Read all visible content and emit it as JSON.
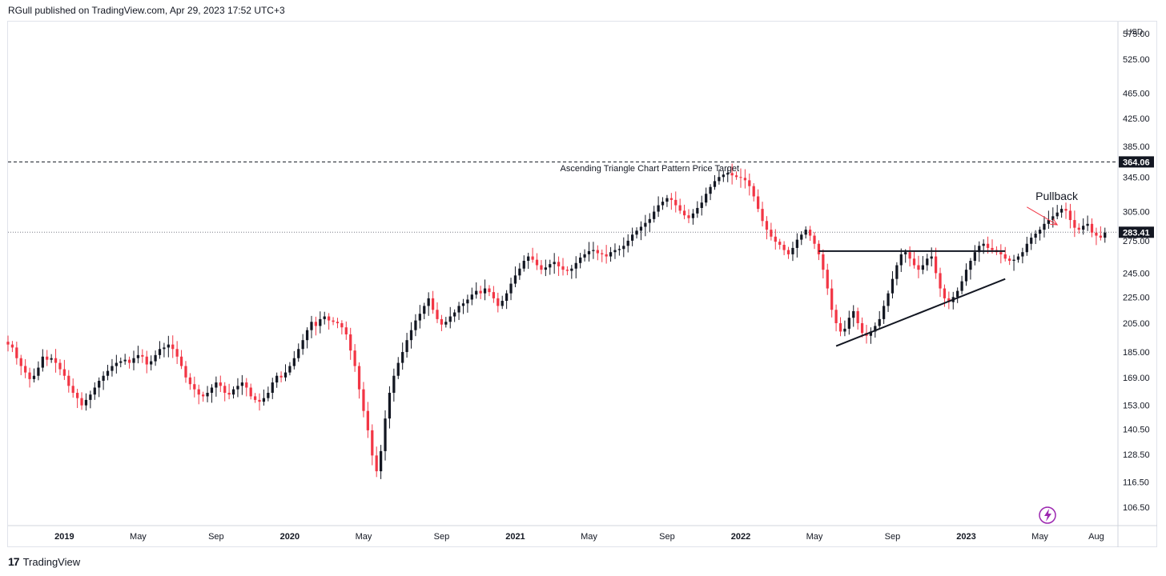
{
  "header": {
    "published_text": "RGull published on TradingView.com, Apr 29, 2023 17:52 UTC+3"
  },
  "footer": {
    "brand": "TradingView",
    "logo_glyph": "17"
  },
  "colors": {
    "up": "#131722",
    "down": "#f23645",
    "grid": "#f0f3fa",
    "price_label_bg": "#131722",
    "arrow": "#f23645",
    "lightning": "#9c27b0"
  },
  "icons": {
    "lightning": "lightning-icon",
    "logo": "tradingview-logo-icon"
  },
  "chart_data": {
    "type": "candlestick",
    "scale": "log",
    "currency": "USD",
    "ylim": [
      100,
      600
    ],
    "y_ticks": [
      "575.00",
      "525.00",
      "465.00",
      "425.00",
      "385.00",
      "345.00",
      "305.00",
      "275.00",
      "245.00",
      "225.00",
      "205.00",
      "185.00",
      "169.00",
      "153.00",
      "140.50",
      "128.50",
      "116.50",
      "106.50"
    ],
    "x_ticks": [
      "2019",
      "May",
      "Sep",
      "2020",
      "May",
      "Sep",
      "2021",
      "May",
      "Sep",
      "2022",
      "May",
      "Sep",
      "2023",
      "May",
      "Aug"
    ],
    "x_tick_weeks": [
      13,
      30,
      48,
      65,
      82,
      100,
      117,
      134,
      152,
      169,
      186,
      204,
      221,
      238,
      251
    ],
    "price_labels": [
      {
        "value": 364.06,
        "text": "364.06",
        "style": "dashed"
      },
      {
        "value": 283.41,
        "text": "283.41",
        "style": "dotted"
      }
    ],
    "annotations": [
      {
        "text": "Ascending Triangle Chart Pattern Price Target",
        "week": 148,
        "price": 352
      },
      {
        "text": "Pullback",
        "week": 237,
        "price": 318
      }
    ],
    "trendlines": [
      {
        "name": "resistance",
        "from": [
          187,
          265
        ],
        "to": [
          230,
          265
        ]
      },
      {
        "name": "support",
        "from": [
          191,
          189
        ],
        "to": [
          230,
          240
        ]
      }
    ],
    "arrow": {
      "from": [
        235,
        310
      ],
      "to": [
        242,
        291
      ]
    },
    "weekly_closes": [
      190,
      188,
      181,
      176,
      172,
      168,
      170,
      175,
      182,
      180,
      181,
      178,
      174,
      170,
      164,
      160,
      157,
      153,
      156,
      159,
      163,
      167,
      170,
      173,
      176,
      178,
      179,
      180,
      178,
      181,
      183,
      182,
      177,
      179,
      183,
      187,
      188,
      190,
      187,
      182,
      176,
      169,
      165,
      162,
      159,
      158,
      160,
      163,
      166,
      164,
      160,
      159,
      162,
      164,
      166,
      163,
      158,
      156,
      155,
      157,
      160,
      166,
      170,
      169,
      172,
      176,
      181,
      187,
      193,
      200,
      206,
      203,
      208,
      210,
      207,
      206,
      205,
      202,
      197,
      186,
      176,
      162,
      150,
      140,
      128,
      121,
      130,
      146,
      160,
      170,
      178,
      185,
      193,
      200,
      207,
      212,
      218,
      224,
      215,
      208,
      204,
      206,
      210,
      213,
      218,
      220,
      223,
      227,
      230,
      228,
      232,
      229,
      224,
      218,
      222,
      228,
      236,
      243,
      249,
      256,
      260,
      257,
      252,
      248,
      250,
      253,
      255,
      251,
      248,
      247,
      249,
      254,
      259,
      262,
      265,
      266,
      263,
      262,
      260,
      264,
      266,
      267,
      270,
      275,
      281,
      285,
      289,
      293,
      297,
      305,
      312,
      316,
      320,
      318,
      312,
      306,
      301,
      298,
      303,
      309,
      315,
      325,
      333,
      340,
      345,
      348,
      350,
      347,
      345,
      344,
      341,
      334,
      322,
      308,
      295,
      286,
      279,
      274,
      271,
      266,
      262,
      268,
      276,
      281,
      286,
      280,
      272,
      262,
      248,
      232,
      215,
      205,
      199,
      201,
      209,
      214,
      205,
      198,
      196,
      199,
      203,
      208,
      218,
      228,
      240,
      252,
      262,
      264,
      258,
      252,
      248,
      252,
      258,
      260,
      245,
      232,
      224,
      221,
      225,
      230,
      238,
      248,
      256,
      264,
      270,
      272,
      268,
      266,
      264,
      262,
      258,
      256,
      257,
      260,
      264,
      272,
      278,
      282,
      286,
      292,
      296,
      300,
      304,
      308,
      306,
      296,
      288,
      286,
      290,
      292,
      283,
      280,
      278,
      283
    ]
  }
}
